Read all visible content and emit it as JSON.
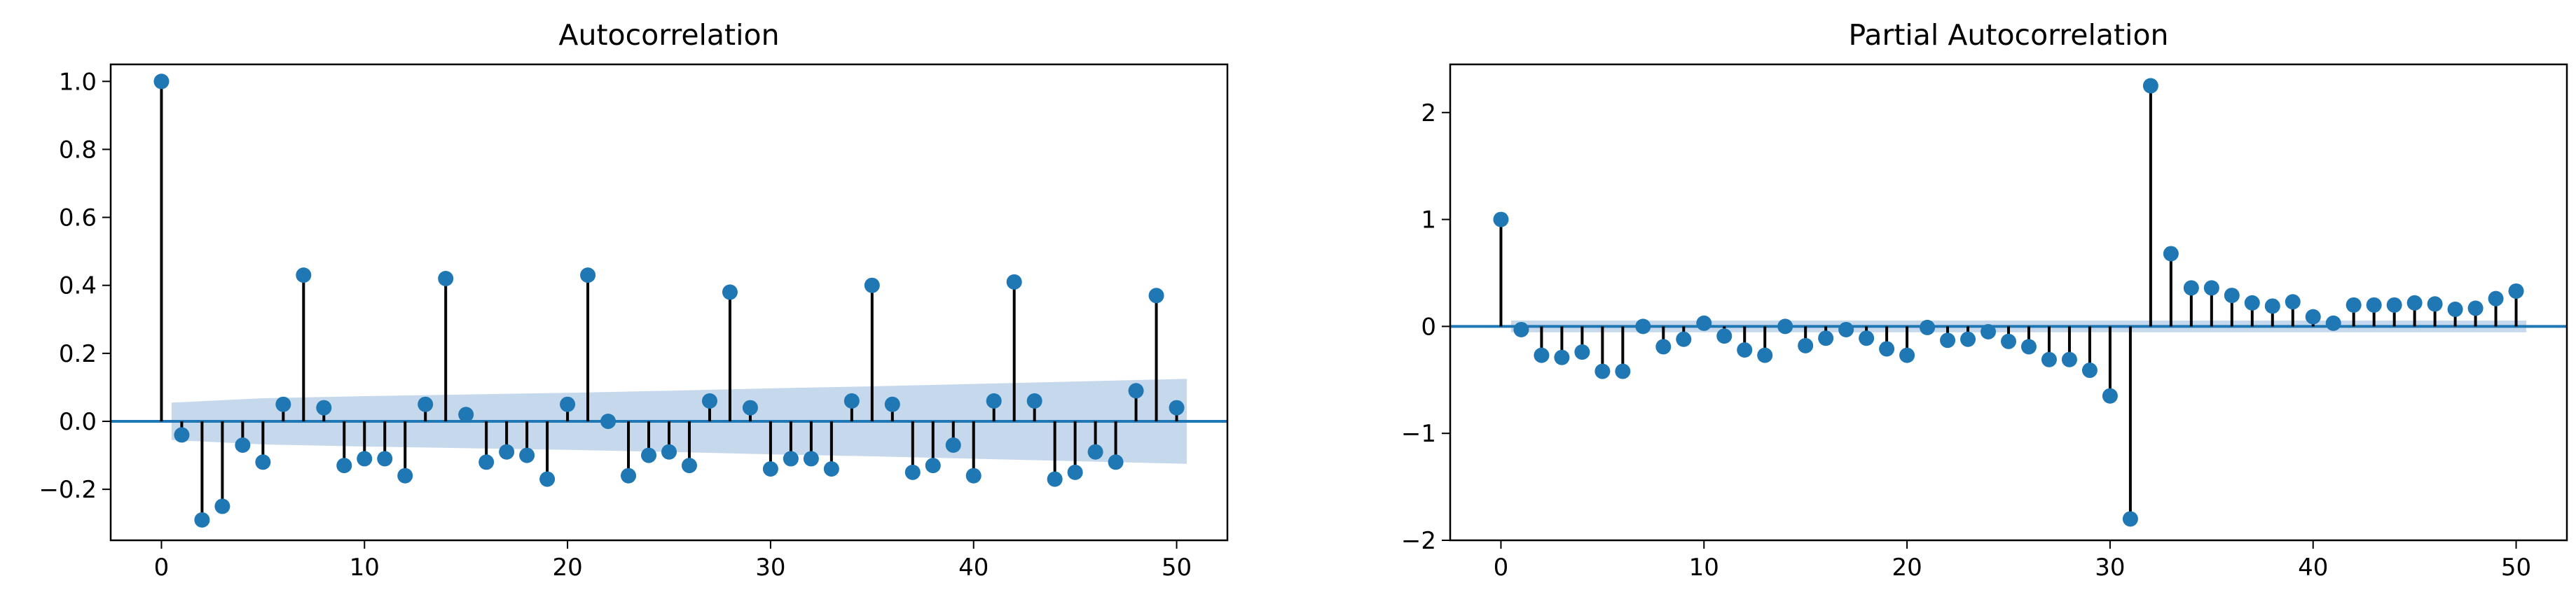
{
  "colors": {
    "accent": "#1f77b4",
    "band": "#c6d9ec",
    "stem": "#000000",
    "axis": "#000000"
  },
  "chart_data": [
    {
      "type": "stem",
      "title": "Autocorrelation",
      "xlabel": "",
      "ylabel": "",
      "xlim": [
        -2.5,
        52.5
      ],
      "ylim": [
        -0.35,
        1.05
      ],
      "xticks": [
        0,
        10,
        20,
        30,
        40,
        50
      ],
      "xtick_labels": [
        "0",
        "10",
        "20",
        "30",
        "40",
        "50"
      ],
      "yticks": [
        -0.2,
        0.0,
        0.2,
        0.4,
        0.6,
        0.8,
        1.0
      ],
      "ytick_labels": [
        "−0.2",
        "0.0",
        "0.2",
        "0.4",
        "0.6",
        "0.8",
        "1.0"
      ],
      "grid": false,
      "x": [
        0,
        1,
        2,
        3,
        4,
        5,
        6,
        7,
        8,
        9,
        10,
        11,
        12,
        13,
        14,
        15,
        16,
        17,
        18,
        19,
        20,
        21,
        22,
        23,
        24,
        25,
        26,
        27,
        28,
        29,
        30,
        31,
        32,
        33,
        34,
        35,
        36,
        37,
        38,
        39,
        40,
        41,
        42,
        43,
        44,
        45,
        46,
        47,
        48,
        49,
        50
      ],
      "values": [
        1.0,
        -0.04,
        -0.29,
        -0.25,
        -0.07,
        -0.12,
        0.05,
        0.43,
        0.04,
        -0.13,
        -0.11,
        -0.11,
        -0.16,
        0.05,
        0.42,
        0.02,
        -0.12,
        -0.09,
        -0.1,
        -0.17,
        0.05,
        0.43,
        0.0,
        -0.16,
        -0.1,
        -0.09,
        -0.13,
        0.06,
        0.38,
        0.04,
        -0.14,
        -0.11,
        -0.11,
        -0.14,
        0.06,
        0.4,
        0.05,
        -0.15,
        -0.13,
        -0.07,
        -0.16,
        0.06,
        0.41,
        0.06,
        -0.17,
        -0.15,
        -0.09,
        -0.12,
        0.09,
        0.37,
        0.04
      ],
      "confidence_band": {
        "x": [
          0.5,
          5,
          10,
          15,
          20,
          25,
          30,
          35,
          40,
          45,
          50.5
        ],
        "upper": [
          0.055,
          0.068,
          0.074,
          0.079,
          0.084,
          0.09,
          0.097,
          0.103,
          0.11,
          0.117,
          0.125
        ],
        "lower": [
          -0.055,
          -0.068,
          -0.074,
          -0.079,
          -0.084,
          -0.09,
          -0.097,
          -0.103,
          -0.11,
          -0.117,
          -0.125
        ]
      }
    },
    {
      "type": "stem",
      "title": "Partial Autocorrelation",
      "xlabel": "",
      "ylabel": "",
      "xlim": [
        -2.5,
        52.5
      ],
      "ylim": [
        -2.0,
        2.45
      ],
      "xticks": [
        0,
        10,
        20,
        30,
        40,
        50
      ],
      "xtick_labels": [
        "0",
        "10",
        "20",
        "30",
        "40",
        "50"
      ],
      "yticks": [
        -2,
        -1,
        0,
        1,
        2
      ],
      "ytick_labels": [
        "−2",
        "−1",
        "0",
        "1",
        "2"
      ],
      "grid": false,
      "x": [
        0,
        1,
        2,
        3,
        4,
        5,
        6,
        7,
        8,
        9,
        10,
        11,
        12,
        13,
        14,
        15,
        16,
        17,
        18,
        19,
        20,
        21,
        22,
        23,
        24,
        25,
        26,
        27,
        28,
        29,
        30,
        31,
        32,
        33,
        34,
        35,
        36,
        37,
        38,
        39,
        40,
        41,
        42,
        43,
        44,
        45,
        46,
        47,
        48,
        49,
        50
      ],
      "values": [
        1.0,
        -0.03,
        -0.27,
        -0.29,
        -0.24,
        -0.42,
        -0.42,
        0.0,
        -0.19,
        -0.12,
        0.03,
        -0.09,
        -0.22,
        -0.27,
        0.0,
        -0.18,
        -0.11,
        -0.03,
        -0.11,
        -0.21,
        -0.27,
        -0.01,
        -0.13,
        -0.12,
        -0.05,
        -0.14,
        -0.19,
        -0.31,
        -0.31,
        -0.41,
        -0.65,
        -1.8,
        2.25,
        0.68,
        0.36,
        0.36,
        0.29,
        0.22,
        0.19,
        0.23,
        0.09,
        0.03,
        0.2,
        0.2,
        0.2,
        0.22,
        0.21,
        0.16,
        0.17,
        0.26,
        0.33
      ],
      "confidence_band": {
        "x": [
          0.5,
          50.5
        ],
        "upper": [
          0.055,
          0.055
        ],
        "lower": [
          -0.055,
          -0.055
        ]
      }
    }
  ]
}
